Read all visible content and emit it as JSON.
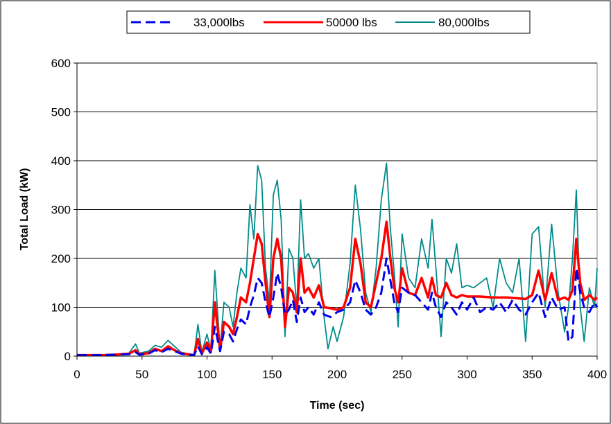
{
  "chart_data": {
    "type": "line",
    "title": "",
    "xlabel": "Time (sec)",
    "ylabel": "Total Load (kW)",
    "xlim": [
      0,
      400
    ],
    "ylim": [
      0,
      600
    ],
    "x_ticks": [
      0,
      50,
      100,
      150,
      200,
      250,
      300,
      350,
      400
    ],
    "y_ticks": [
      0,
      100,
      200,
      300,
      400,
      500,
      600
    ],
    "grid": "horizontal",
    "legend_position": "top",
    "series": [
      {
        "name": "33,000lbs",
        "color": "#0000ee",
        "style": "dashed",
        "points": [
          [
            0,
            2
          ],
          [
            20,
            2
          ],
          [
            30,
            3
          ],
          [
            40,
            4
          ],
          [
            45,
            8
          ],
          [
            48,
            3
          ],
          [
            55,
            5
          ],
          [
            60,
            12
          ],
          [
            65,
            8
          ],
          [
            70,
            15
          ],
          [
            75,
            10
          ],
          [
            80,
            5
          ],
          [
            85,
            3
          ],
          [
            90,
            2
          ],
          [
            93,
            20
          ],
          [
            96,
            4
          ],
          [
            100,
            18
          ],
          [
            103,
            5
          ],
          [
            106,
            60
          ],
          [
            110,
            10
          ],
          [
            113,
            50
          ],
          [
            117,
            45
          ],
          [
            120,
            30
          ],
          [
            123,
            55
          ],
          [
            126,
            75
          ],
          [
            130,
            65
          ],
          [
            133,
            100
          ],
          [
            136,
            125
          ],
          [
            139,
            160
          ],
          [
            142,
            150
          ],
          [
            145,
            110
          ],
          [
            148,
            80
          ],
          [
            151,
            120
          ],
          [
            154,
            170
          ],
          [
            157,
            140
          ],
          [
            160,
            85
          ],
          [
            163,
            95
          ],
          [
            166,
            115
          ],
          [
            169,
            70
          ],
          [
            172,
            120
          ],
          [
            175,
            90
          ],
          [
            178,
            100
          ],
          [
            182,
            85
          ],
          [
            186,
            110
          ],
          [
            190,
            85
          ],
          [
            195,
            80
          ],
          [
            200,
            90
          ],
          [
            205,
            95
          ],
          [
            210,
            110
          ],
          [
            214,
            155
          ],
          [
            218,
            130
          ],
          [
            222,
            95
          ],
          [
            226,
            85
          ],
          [
            230,
            100
          ],
          [
            234,
            130
          ],
          [
            238,
            200
          ],
          [
            241,
            155
          ],
          [
            244,
            110
          ],
          [
            247,
            90
          ],
          [
            250,
            140
          ],
          [
            255,
            130
          ],
          [
            260,
            125
          ],
          [
            265,
            110
          ],
          [
            270,
            95
          ],
          [
            273,
            130
          ],
          [
            276,
            100
          ],
          [
            280,
            80
          ],
          [
            284,
            110
          ],
          [
            288,
            100
          ],
          [
            292,
            85
          ],
          [
            296,
            110
          ],
          [
            300,
            95
          ],
          [
            305,
            120
          ],
          [
            310,
            90
          ],
          [
            315,
            100
          ],
          [
            320,
            95
          ],
          [
            325,
            110
          ],
          [
            330,
            90
          ],
          [
            335,
            115
          ],
          [
            340,
            95
          ],
          [
            345,
            85
          ],
          [
            350,
            110
          ],
          [
            355,
            130
          ],
          [
            360,
            80
          ],
          [
            365,
            120
          ],
          [
            370,
            95
          ],
          [
            375,
            100
          ],
          [
            378,
            30
          ],
          [
            381,
            40
          ],
          [
            384,
            180
          ],
          [
            387,
            130
          ],
          [
            390,
            100
          ],
          [
            394,
            90
          ],
          [
            398,
            110
          ],
          [
            400,
            100
          ]
        ]
      },
      {
        "name": "50000 lbs",
        "color": "#ff0000",
        "style": "solid",
        "points": [
          [
            0,
            2
          ],
          [
            20,
            2
          ],
          [
            30,
            3
          ],
          [
            40,
            5
          ],
          [
            45,
            12
          ],
          [
            48,
            4
          ],
          [
            55,
            6
          ],
          [
            60,
            15
          ],
          [
            65,
            10
          ],
          [
            70,
            20
          ],
          [
            75,
            12
          ],
          [
            80,
            6
          ],
          [
            85,
            4
          ],
          [
            90,
            2
          ],
          [
            93,
            35
          ],
          [
            96,
            5
          ],
          [
            100,
            28
          ],
          [
            103,
            8
          ],
          [
            106,
            110
          ],
          [
            110,
            12
          ],
          [
            113,
            70
          ],
          [
            117,
            60
          ],
          [
            120,
            45
          ],
          [
            123,
            80
          ],
          [
            126,
            120
          ],
          [
            130,
            110
          ],
          [
            133,
            150
          ],
          [
            136,
            200
          ],
          [
            139,
            250
          ],
          [
            142,
            230
          ],
          [
            145,
            150
          ],
          [
            148,
            80
          ],
          [
            151,
            200
          ],
          [
            154,
            240
          ],
          [
            157,
            200
          ],
          [
            160,
            60
          ],
          [
            163,
            140
          ],
          [
            166,
            130
          ],
          [
            169,
            90
          ],
          [
            172,
            200
          ],
          [
            175,
            130
          ],
          [
            178,
            140
          ],
          [
            182,
            120
          ],
          [
            186,
            145
          ],
          [
            190,
            100
          ],
          [
            195,
            98
          ],
          [
            200,
            95
          ],
          [
            205,
            100
          ],
          [
            210,
            140
          ],
          [
            214,
            240
          ],
          [
            218,
            190
          ],
          [
            222,
            110
          ],
          [
            226,
            100
          ],
          [
            230,
            150
          ],
          [
            234,
            200
          ],
          [
            238,
            275
          ],
          [
            241,
            200
          ],
          [
            244,
            140
          ],
          [
            247,
            110
          ],
          [
            250,
            180
          ],
          [
            255,
            130
          ],
          [
            260,
            125
          ],
          [
            265,
            160
          ],
          [
            270,
            120
          ],
          [
            273,
            160
          ],
          [
            276,
            125
          ],
          [
            280,
            120
          ],
          [
            284,
            150
          ],
          [
            288,
            125
          ],
          [
            292,
            120
          ],
          [
            296,
            125
          ],
          [
            300,
            122
          ],
          [
            310,
            122
          ],
          [
            320,
            120
          ],
          [
            330,
            120
          ],
          [
            340,
            118
          ],
          [
            345,
            117
          ],
          [
            350,
            125
          ],
          [
            355,
            175
          ],
          [
            360,
            115
          ],
          [
            365,
            170
          ],
          [
            370,
            115
          ],
          [
            375,
            120
          ],
          [
            378,
            115
          ],
          [
            381,
            135
          ],
          [
            384,
            240
          ],
          [
            387,
            150
          ],
          [
            390,
            115
          ],
          [
            394,
            125
          ],
          [
            398,
            115
          ],
          [
            400,
            120
          ]
        ]
      },
      {
        "name": "80,000lbs",
        "color": "#008b8b",
        "style": "solid",
        "points": [
          [
            0,
            2
          ],
          [
            20,
            2
          ],
          [
            30,
            4
          ],
          [
            40,
            6
          ],
          [
            45,
            25
          ],
          [
            48,
            6
          ],
          [
            55,
            10
          ],
          [
            60,
            22
          ],
          [
            65,
            18
          ],
          [
            70,
            32
          ],
          [
            75,
            20
          ],
          [
            80,
            8
          ],
          [
            85,
            5
          ],
          [
            90,
            2
          ],
          [
            93,
            65
          ],
          [
            96,
            8
          ],
          [
            100,
            45
          ],
          [
            103,
            12
          ],
          [
            106,
            175
          ],
          [
            110,
            15
          ],
          [
            113,
            110
          ],
          [
            117,
            100
          ],
          [
            120,
            60
          ],
          [
            123,
            130
          ],
          [
            126,
            180
          ],
          [
            130,
            160
          ],
          [
            133,
            310
          ],
          [
            136,
            240
          ],
          [
            139,
            390
          ],
          [
            142,
            360
          ],
          [
            145,
            180
          ],
          [
            148,
            110
          ],
          [
            151,
            330
          ],
          [
            154,
            360
          ],
          [
            157,
            280
          ],
          [
            160,
            40
          ],
          [
            163,
            220
          ],
          [
            166,
            200
          ],
          [
            169,
            100
          ],
          [
            172,
            320
          ],
          [
            175,
            200
          ],
          [
            178,
            210
          ],
          [
            182,
            180
          ],
          [
            186,
            200
          ],
          [
            190,
            80
          ],
          [
            193,
            15
          ],
          [
            197,
            60
          ],
          [
            200,
            30
          ],
          [
            205,
            80
          ],
          [
            210,
            190
          ],
          [
            214,
            350
          ],
          [
            218,
            260
          ],
          [
            222,
            130
          ],
          [
            226,
            90
          ],
          [
            230,
            180
          ],
          [
            234,
            320
          ],
          [
            238,
            395
          ],
          [
            241,
            260
          ],
          [
            244,
            170
          ],
          [
            247,
            60
          ],
          [
            250,
            250
          ],
          [
            255,
            160
          ],
          [
            260,
            140
          ],
          [
            265,
            240
          ],
          [
            270,
            180
          ],
          [
            273,
            280
          ],
          [
            276,
            180
          ],
          [
            280,
            40
          ],
          [
            284,
            200
          ],
          [
            288,
            170
          ],
          [
            292,
            230
          ],
          [
            296,
            140
          ],
          [
            300,
            145
          ],
          [
            305,
            140
          ],
          [
            310,
            150
          ],
          [
            315,
            160
          ],
          [
            320,
            100
          ],
          [
            325,
            200
          ],
          [
            330,
            150
          ],
          [
            335,
            130
          ],
          [
            340,
            200
          ],
          [
            345,
            30
          ],
          [
            350,
            250
          ],
          [
            355,
            265
          ],
          [
            360,
            100
          ],
          [
            365,
            270
          ],
          [
            370,
            130
          ],
          [
            375,
            50
          ],
          [
            378,
            100
          ],
          [
            381,
            200
          ],
          [
            384,
            340
          ],
          [
            387,
            100
          ],
          [
            390,
            30
          ],
          [
            394,
            140
          ],
          [
            398,
            100
          ],
          [
            400,
            180
          ]
        ]
      }
    ]
  }
}
